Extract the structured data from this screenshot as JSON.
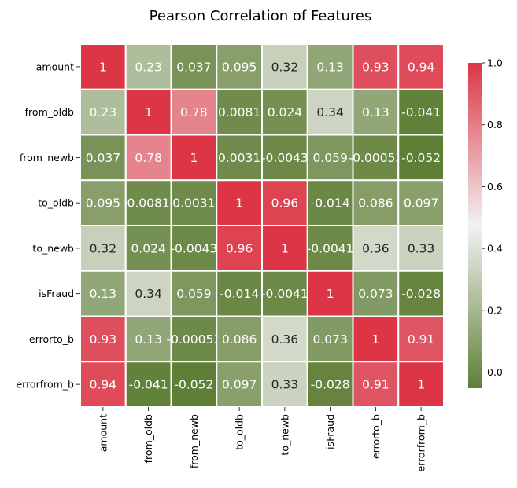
{
  "chart_data": {
    "type": "heatmap",
    "title": "Pearson Correlation of Features",
    "row_labels": [
      "amount",
      "from_oldb",
      "from_newb",
      "to_oldb",
      "to_newb",
      "isFraud",
      "errorto_b",
      "errorfrom_b"
    ],
    "col_labels": [
      "amount",
      "from_oldb",
      "from_newb",
      "to_oldb",
      "to_newb",
      "isFraud",
      "errorto_b",
      "errorfrom_b"
    ],
    "values": [
      [
        1,
        0.23,
        0.037,
        0.095,
        0.32,
        0.13,
        0.93,
        0.94
      ],
      [
        0.23,
        1,
        0.78,
        0.0081,
        0.024,
        0.34,
        0.13,
        -0.041
      ],
      [
        0.037,
        0.78,
        1,
        0.0031,
        -0.0043,
        0.059,
        -0.00053,
        -0.052
      ],
      [
        0.095,
        0.0081,
        0.0031,
        1,
        0.96,
        -0.014,
        0.086,
        0.097
      ],
      [
        0.32,
        0.024,
        -0.0043,
        0.96,
        1,
        -0.0041,
        0.36,
        0.33
      ],
      [
        0.13,
        0.34,
        0.059,
        -0.014,
        -0.0041,
        1,
        0.073,
        -0.028
      ],
      [
        0.93,
        0.13,
        -0.00053,
        0.086,
        0.36,
        0.073,
        1,
        0.91
      ],
      [
        0.94,
        -0.041,
        -0.052,
        0.097,
        0.33,
        -0.028,
        0.91,
        1
      ]
    ],
    "cell_text": [
      [
        "1",
        "0.23",
        "0.037",
        "0.095",
        "0.32",
        "0.13",
        "0.93",
        "0.94"
      ],
      [
        "0.23",
        "1",
        "0.78",
        "0.0081",
        "0.024",
        "0.34",
        "0.13",
        "-0.041"
      ],
      [
        "0.037",
        "0.78",
        "1",
        "0.0031",
        "-0.0043",
        "0.059",
        "-0.00053",
        "-0.052"
      ],
      [
        "0.095",
        "0.0081",
        "0.0031",
        "1",
        "0.96",
        "-0.014",
        "0.086",
        "0.097"
      ],
      [
        "0.32",
        "0.024",
        "-0.0043",
        "0.96",
        "1",
        "-0.0041",
        "0.36",
        "0.33"
      ],
      [
        "0.13",
        "0.34",
        "0.059",
        "-0.014",
        "-0.0041",
        "1",
        "0.073",
        "-0.028"
      ],
      [
        "0.93",
        "0.13",
        "-0.00053",
        "0.086",
        "0.36",
        "0.073",
        "1",
        "0.91"
      ],
      [
        "0.94",
        "-0.041",
        "-0.052",
        "0.097",
        "0.33",
        "-0.028",
        "0.91",
        "1"
      ]
    ],
    "colorbar": {
      "vmin": -0.052,
      "vmax": 1.0,
      "ticks": [
        "0.0",
        "0.2",
        "0.4",
        "0.6",
        "0.8",
        "1.0"
      ],
      "tick_values": [
        0.0,
        0.2,
        0.4,
        0.6,
        0.8,
        1.0
      ]
    },
    "colors": {
      "low": "#5f7f37",
      "mid": "#f2f2f2",
      "high": "#dc3545",
      "grid_lines": "#ffffff"
    },
    "grid": false
  }
}
